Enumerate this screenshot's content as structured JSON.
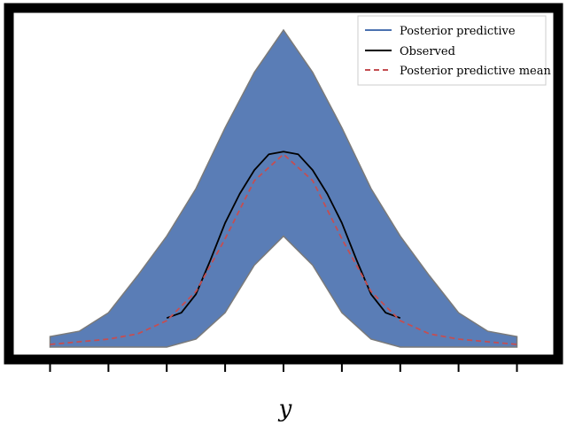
{
  "chart_data": {
    "type": "line",
    "title": "",
    "xlabel": "y",
    "ylabel": "",
    "xlim": [
      -0.85,
      0.85
    ],
    "ylim": [
      0,
      12.4
    ],
    "grid": false,
    "legend_position": "top-right",
    "x_ticks": [
      -0.8,
      -0.6,
      -0.4,
      -0.2,
      0.0,
      0.2,
      0.4,
      0.6,
      0.8
    ],
    "series": [
      {
        "name": "Posterior predictive",
        "style": "band",
        "color": "#4c72b0",
        "x": [
          -0.8,
          -0.7,
          -0.6,
          -0.5,
          -0.4,
          -0.3,
          -0.2,
          -0.1,
          0.0,
          0.1,
          0.2,
          0.3,
          0.4,
          0.5,
          0.6,
          0.7,
          0.8
        ],
        "lower": [
          0.0,
          0.0,
          0.0,
          0.0,
          0.0,
          0.3,
          1.3,
          3.1,
          4.2,
          3.1,
          1.3,
          0.3,
          0.0,
          0.0,
          0.0,
          0.0,
          0.0
        ],
        "upper": [
          0.4,
          0.6,
          1.3,
          2.7,
          4.2,
          6.0,
          8.3,
          10.4,
          12.0,
          10.4,
          8.3,
          6.0,
          4.2,
          2.7,
          1.3,
          0.6,
          0.4
        ]
      },
      {
        "name": "Observed",
        "style": "solid",
        "color": "#000000",
        "x": [
          -0.4,
          -0.35,
          -0.3,
          -0.25,
          -0.2,
          -0.15,
          -0.1,
          -0.05,
          0.0,
          0.05,
          0.1,
          0.15,
          0.2,
          0.25,
          0.3,
          0.35,
          0.4
        ],
        "y": [
          1.1,
          1.3,
          2.0,
          3.3,
          4.7,
          5.8,
          6.7,
          7.3,
          7.4,
          7.3,
          6.7,
          5.8,
          4.7,
          3.3,
          2.0,
          1.3,
          1.1
        ]
      },
      {
        "name": "Posterior predictive mean",
        "style": "dashed",
        "color": "#c44e52",
        "x": [
          -0.8,
          -0.7,
          -0.6,
          -0.5,
          -0.4,
          -0.3,
          -0.2,
          -0.1,
          0.0,
          0.1,
          0.2,
          0.3,
          0.4,
          0.5,
          0.6,
          0.7,
          0.8
        ],
        "y": [
          0.1,
          0.2,
          0.3,
          0.5,
          1.0,
          2.1,
          4.1,
          6.3,
          7.3,
          6.3,
          4.1,
          2.1,
          1.0,
          0.5,
          0.3,
          0.2,
          0.1
        ]
      }
    ]
  }
}
